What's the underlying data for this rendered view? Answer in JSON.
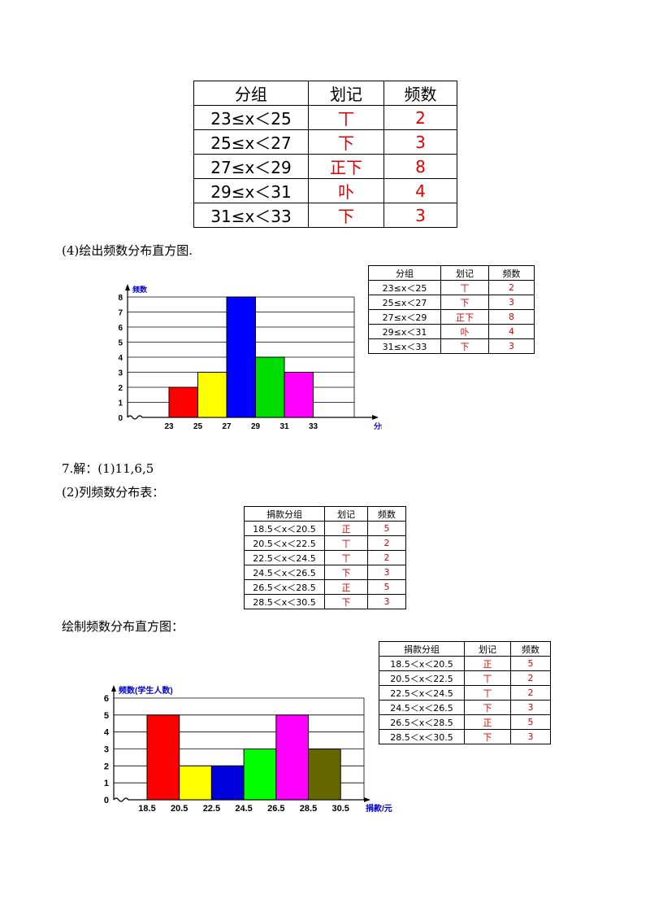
{
  "table1": {
    "headers": [
      "分组",
      "划记",
      "频数"
    ],
    "rows": [
      {
        "group": "23≤x＜25",
        "tally": "丅",
        "freq": "2"
      },
      {
        "group": "25≤x＜27",
        "tally": "下",
        "freq": "3"
      },
      {
        "group": "27≤x＜29",
        "tally": "正下",
        "freq": "8"
      },
      {
        "group": "29≤x＜31",
        "tally": "卟",
        "freq": "4"
      },
      {
        "group": "31≤x＜33",
        "tally": "下",
        "freq": "3"
      }
    ]
  },
  "text": {
    "p4": "(4)绘出频数分布直方图.",
    "answer7": "7.解：(1)11,6,5",
    "list_table": "(2)列频数分布表：",
    "draw_hist": "绘制频数分布直方图："
  },
  "table2": {
    "headers": [
      "捐款分组",
      "划记",
      "频数"
    ],
    "rows": [
      {
        "group": "18.5＜x＜20.5",
        "tally": "正",
        "freq": "5"
      },
      {
        "group": "20.5＜x＜22.5",
        "tally": "丅",
        "freq": "2"
      },
      {
        "group": "22.5＜x＜24.5",
        "tally": "丅",
        "freq": "2"
      },
      {
        "group": "24.5＜x＜26.5",
        "tally": "下",
        "freq": "3"
      },
      {
        "group": "26.5＜x＜28.5",
        "tally": "正",
        "freq": "5"
      },
      {
        "group": "28.5＜x＜30.5",
        "tally": "下",
        "freq": "3"
      }
    ]
  },
  "chart_data": [
    {
      "type": "bar",
      "categories": [
        "23-25",
        "25-27",
        "27-29",
        "29-31",
        "31-33"
      ],
      "x_edges": [
        "23",
        "25",
        "27",
        "29",
        "31",
        "33"
      ],
      "values": [
        2,
        3,
        8,
        4,
        3
      ],
      "colors": [
        "#ff0000",
        "#ffff00",
        "#0000ff",
        "#00dd00",
        "#ff00ff"
      ],
      "xlabel": "分组",
      "ylabel": "频数",
      "y_ticks": [
        "0",
        "1",
        "2",
        "3",
        "4",
        "5",
        "6",
        "7",
        "8"
      ],
      "ylim": [
        0,
        8
      ],
      "grid": true
    },
    {
      "type": "bar",
      "categories": [
        "18.5-20.5",
        "20.5-22.5",
        "22.5-24.5",
        "24.5-26.5",
        "26.5-28.5",
        "28.5-30.5"
      ],
      "x_edges": [
        "18.5",
        "20.5",
        "22.5",
        "24.5",
        "26.5",
        "28.5",
        "30.5"
      ],
      "values": [
        5,
        2,
        2,
        3,
        5,
        3
      ],
      "colors": [
        "#ff0000",
        "#ffff00",
        "#0000dd",
        "#00ff00",
        "#ff00ff",
        "#666600"
      ],
      "xlabel": "捐款/元",
      "ylabel": "频数(学生人数)",
      "y_ticks": [
        "0",
        "1",
        "2",
        "3",
        "4",
        "5",
        "6"
      ],
      "ylim": [
        0,
        6
      ],
      "grid": true
    }
  ]
}
